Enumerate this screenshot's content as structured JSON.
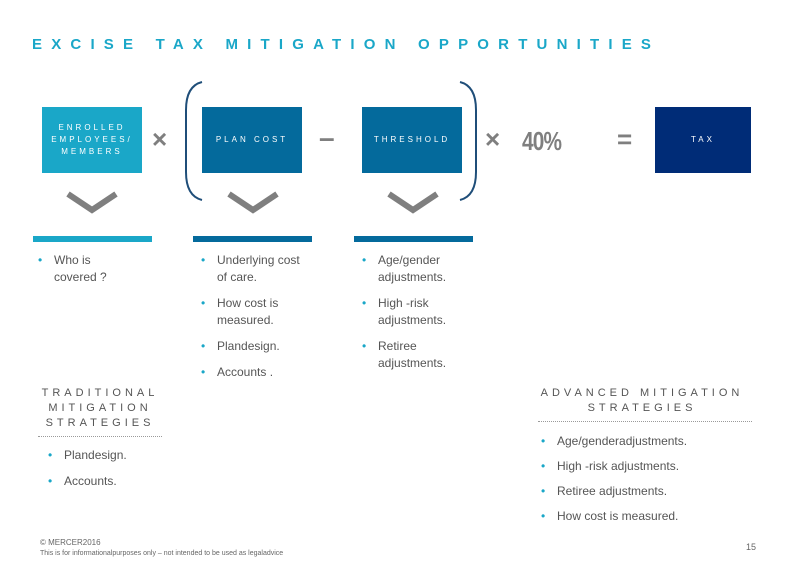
{
  "title": "EXCISE TAX MITIGATION OPPORTUNITIES",
  "formula": {
    "box1": "ENROLLED EMPLOYEES/ MEMBERS",
    "times1": "×",
    "box2": "PLAN COST",
    "minus": "–",
    "box3": "THRESHOLD",
    "times2": "×",
    "rate": "40%",
    "equals": "=",
    "box4": "TAX"
  },
  "columns": [
    {
      "items": [
        "Who is covered ?"
      ]
    },
    {
      "items": [
        "Underlying cost of care.",
        "How cost is measured.",
        "Plandesign.",
        "Accounts ."
      ]
    },
    {
      "items": [
        "Age/gender adjustments.",
        "High -risk adjustments.",
        "Retiree adjustments."
      ]
    }
  ],
  "traditional": {
    "heading_lines": [
      "TRADITIONAL",
      "MITIGATION",
      "STRATEGIES"
    ],
    "items": [
      "Plandesign.",
      "Accounts."
    ]
  },
  "advanced": {
    "heading_lines": [
      "ADVANCED MITIGATION",
      "STRATEGIES"
    ],
    "items": [
      "Age/genderadjustments.",
      "High -risk adjustments.",
      "Retiree adjustments.",
      "How cost is measured."
    ]
  },
  "footer": {
    "copyright": "© MERCER2016",
    "disclaimer": "This is for informationalpurposes only – not intended to be used as legaladvice",
    "page_number": "15"
  },
  "colors": {
    "teal": "#1aa7c8",
    "blue": "#046a9c",
    "navy": "#002c77",
    "bracket": "#1f4e79",
    "gray": "#7f7f7f"
  }
}
